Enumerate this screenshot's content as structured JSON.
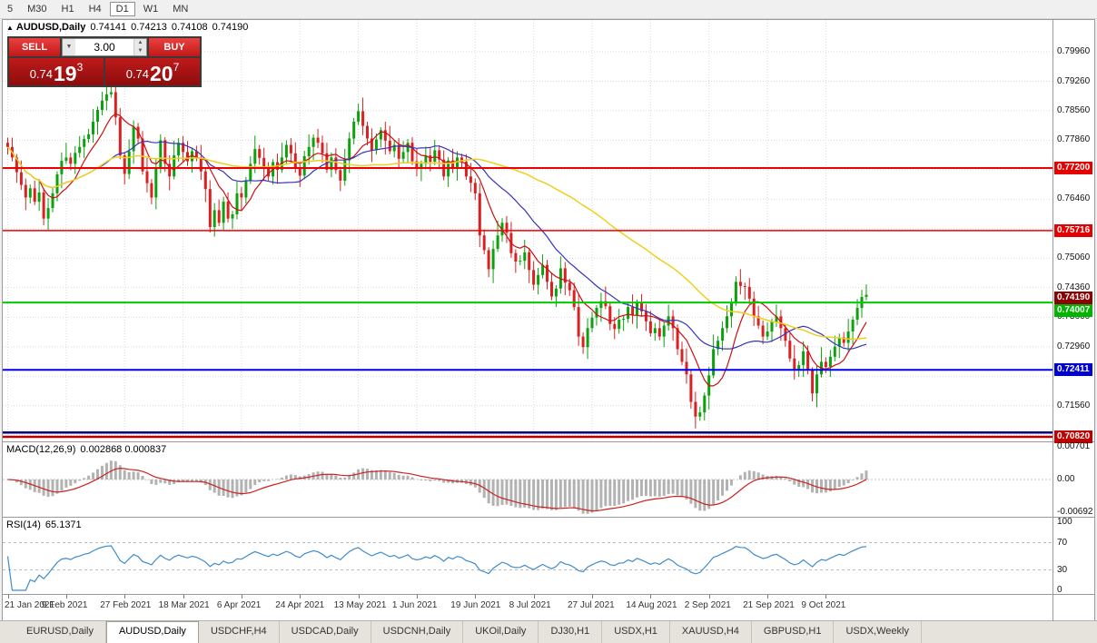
{
  "toolbar": {
    "timeframes": [
      "5",
      "M30",
      "H1",
      "H4",
      "D1",
      "W1",
      "MN"
    ],
    "active": "D1"
  },
  "chart": {
    "title": {
      "symbol_period": "AUDUSD,Daily",
      "open": "0.74141",
      "high": "0.74213",
      "low": "0.74108",
      "close": "0.74190"
    },
    "panel_toggle_icon": "▲",
    "trade_panel": {
      "sell_label": "SELL",
      "buy_label": "BUY",
      "volume": "3.00",
      "sell_price": {
        "prefix": "0.74",
        "big": "19",
        "sup": "3"
      },
      "buy_price": {
        "prefix": "0.74",
        "big": "20",
        "sup": "7"
      }
    }
  },
  "chart_data": {
    "type": "candlestick",
    "symbol": "AUDUSD",
    "timeframe": "Daily",
    "pip": 0.0001,
    "first_open_pips": 7780,
    "open_equals_previous_close": true,
    "closes_pips": [
      7770,
      7745,
      7710,
      7680,
      7650,
      7672,
      7640,
      7662,
      7600,
      7625,
      7660,
      7705,
      7737,
      7745,
      7730,
      7756,
      7770,
      7789,
      7800,
      7830,
      7858,
      7880,
      7895,
      7900,
      7840,
      7750,
      7706,
      7760,
      7818,
      7790,
      7712,
      7684,
      7650,
      7718,
      7786,
      7730,
      7700,
      7750,
      7780,
      7758,
      7736,
      7760,
      7745,
      7712,
      7670,
      7580,
      7620,
      7590,
      7640,
      7600,
      7610,
      7660,
      7650,
      7690,
      7730,
      7765,
      7744,
      7720,
      7700,
      7734,
      7716,
      7745,
      7775,
      7755,
      7720,
      7702,
      7748,
      7770,
      7792,
      7780,
      7755,
      7716,
      7745,
      7715,
      7690,
      7738,
      7790,
      7830,
      7855,
      7820,
      7790,
      7762,
      7788,
      7810,
      7785,
      7760,
      7775,
      7742,
      7758,
      7780,
      7736,
      7720,
      7730,
      7750,
      7735,
      7762,
      7740,
      7700,
      7738,
      7720,
      7745,
      7735,
      7700,
      7685,
      7660,
      7560,
      7525,
      7480,
      7528,
      7560,
      7590,
      7566,
      7518,
      7498,
      7500,
      7520,
      7478,
      7443,
      7466,
      7490,
      7450,
      7415,
      7434,
      7482,
      7448,
      7430,
      7390,
      7320,
      7295,
      7340,
      7365,
      7388,
      7404,
      7392,
      7350,
      7338,
      7360,
      7362,
      7390,
      7370,
      7400,
      7380,
      7356,
      7328,
      7340,
      7320,
      7346,
      7368,
      7340,
      7290,
      7260,
      7230,
      7165,
      7130,
      7140,
      7180,
      7228,
      7290,
      7310,
      7340,
      7368,
      7402,
      7450,
      7440,
      7438,
      7410,
      7368,
      7346,
      7320,
      7332,
      7355,
      7368,
      7340,
      7310,
      7268,
      7240,
      7252,
      7285,
      7240,
      7185,
      7230,
      7260,
      7248,
      7272,
      7296,
      7318,
      7305,
      7332,
      7360,
      7388,
      7414,
      7419
    ],
    "upper_wick_pips_cycle": [
      12,
      22,
      8,
      28,
      15,
      9,
      18,
      32,
      10,
      24,
      14,
      7,
      20,
      35,
      11,
      16,
      26,
      9,
      13,
      30,
      8,
      21,
      17,
      25
    ],
    "lower_wick_pips_cycle": [
      18,
      9,
      25,
      12,
      30,
      14,
      8,
      22,
      16,
      28,
      10,
      19,
      33,
      7,
      15,
      24,
      11,
      27,
      9,
      20,
      31,
      13,
      23,
      8
    ],
    "candles_per_label": 13,
    "x_axis_dates": [
      "21 Jan 2021",
      "9 Feb 2021",
      "27 Feb 2021",
      "18 Mar 2021",
      "6 Apr 2021",
      "24 Apr 2021",
      "13 May 2021",
      "1 Jun 2021",
      "19 Jun 2021",
      "8 Jul 2021",
      "27 Jul 2021",
      "14 Aug 2021",
      "2 Sep 2021",
      "21 Sep 2021",
      "9 Oct 2021"
    ],
    "bull_color": "#0da10d",
    "bear_color": "#d92121",
    "moving_averages": [
      {
        "period": 8,
        "color": "#cc1111",
        "width": 1.2
      },
      {
        "period": 21,
        "color": "#3535bb",
        "width": 1.2
      },
      {
        "period": 55,
        "color": "#f0cf1e",
        "width": 1.5
      }
    ],
    "y_axis": {
      "top": 0.7996,
      "bottom": 0.7086,
      "step": 0.007,
      "labels": [
        {
          "text": "0.79960",
          "price": 0.7996
        },
        {
          "text": "0.79260",
          "price": 0.7926
        },
        {
          "text": "0.78560",
          "price": 0.7856
        },
        {
          "text": "0.77860",
          "price": 0.7786
        },
        {
          "text": "0.76460",
          "price": 0.7646
        },
        {
          "text": "0.75060",
          "price": 0.7506
        },
        {
          "text": "0.74360",
          "price": 0.7436
        },
        {
          "text": "0.73660",
          "price": 0.7366
        },
        {
          "text": "0.72960",
          "price": 0.7296
        },
        {
          "text": "0.71560",
          "price": 0.7156
        }
      ]
    },
    "h_lines": [
      {
        "price": 0.772,
        "color": "#ee0000",
        "width": 2,
        "tag": "0.77200",
        "tag_bg": "#e60000",
        "tag_dy": -7,
        "line": true
      },
      {
        "price": 0.75716,
        "color": "#ee0000",
        "width": 1.5,
        "tag": "0.75716",
        "tag_bg": "#e60000",
        "tag_dy": -7,
        "line": true
      },
      {
        "price": 0.7419,
        "color": "#8b0000",
        "width": 0,
        "tag": "0.74190",
        "tag_bg": "#8b0000",
        "tag_dy": -4,
        "line": false
      },
      {
        "price": 0.74007,
        "color": "#00cc00",
        "width": 2,
        "tag": "0.74007",
        "tag_bg": "#00b400",
        "tag_dy": 2,
        "line": true
      },
      {
        "price": 0.72411,
        "color": "#0000ee",
        "width": 2,
        "tag": "0.72411",
        "tag_bg": "#0000d0",
        "tag_dy": -7,
        "line": true
      },
      {
        "price": 0.7092,
        "color": "#000080",
        "width": 2.5,
        "tag": null,
        "line": true
      },
      {
        "price": 0.7082,
        "color": "#b80000",
        "width": 2.5,
        "tag": "0.70820",
        "tag_bg": "#c00000",
        "tag_dy": -7,
        "line": true
      }
    ],
    "macd": {
      "label": "MACD(12,26,9)",
      "values_text": "0.002868 0.000837",
      "fast": 12,
      "slow": 26,
      "signal_period": 9,
      "hist_color": "#b2b2b2",
      "signal_color": "#cc2222",
      "axis": [
        {
          "text": "0.00701",
          "value": 0.00701
        },
        {
          "text": "0.00",
          "value": 0
        },
        {
          "text": "-0.00692",
          "value": -0.00692
        }
      ]
    },
    "rsi": {
      "label": "RSI(14)",
      "value_text": "65.1371",
      "period": 14,
      "line_color": "#3f8ccc",
      "levels": [
        70,
        30
      ],
      "axis": [
        {
          "text": "100",
          "value": 100
        },
        {
          "text": "70",
          "value": 70
        },
        {
          "text": "30",
          "value": 30
        },
        {
          "text": "0",
          "value": 0
        }
      ]
    }
  },
  "tabs": {
    "items": [
      "EURUSD,Daily",
      "AUDUSD,Daily",
      "USDCHF,H4",
      "USDCAD,Daily",
      "USDCNH,Daily",
      "UKOil,Daily",
      "DJ30,H1",
      "USDX,H1",
      "XAUUSD,H4",
      "GBPUSD,H1",
      "USDX,Weekly"
    ],
    "active_index": 1
  }
}
